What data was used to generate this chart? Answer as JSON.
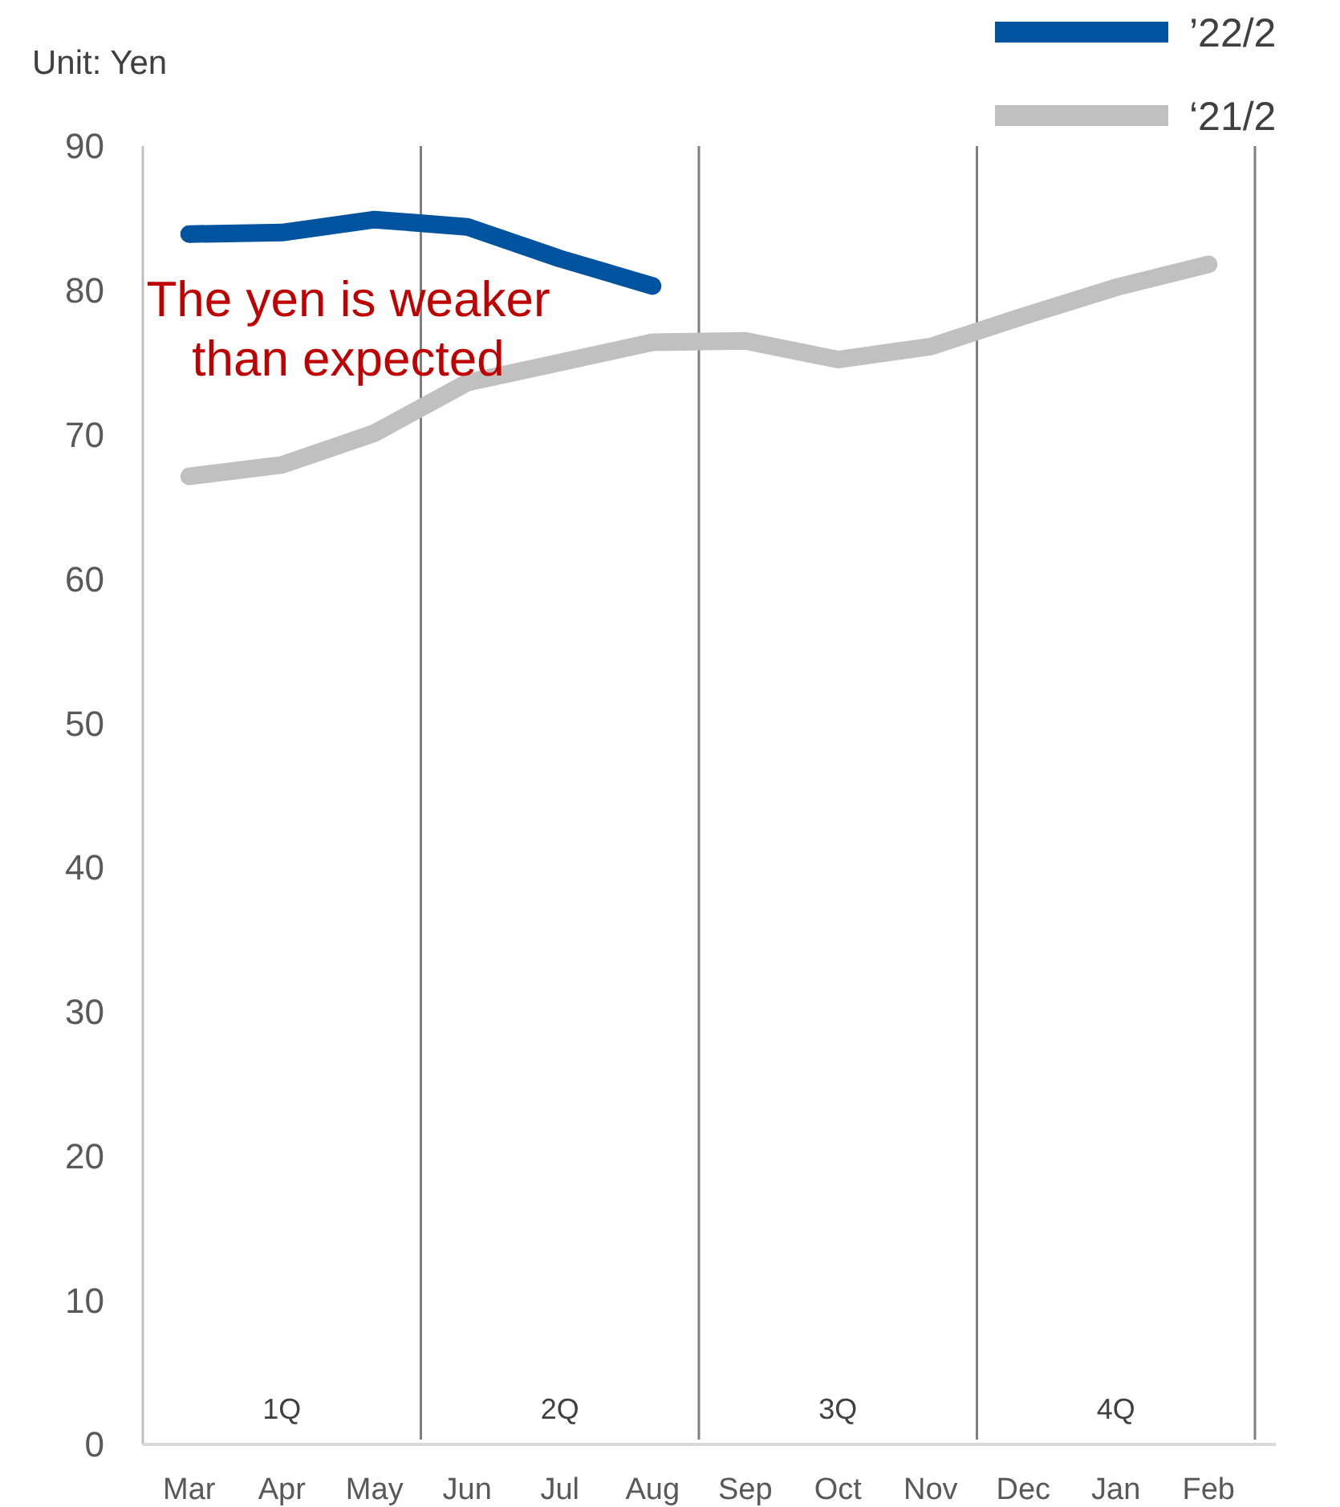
{
  "chart_data": {
    "type": "line",
    "ylabel": "Unit: Yen",
    "categories": [
      "Mar",
      "Apr",
      "May",
      "Jun",
      "Jul",
      "Aug",
      "Sep",
      "Oct",
      "Nov",
      "Dec",
      "Jan",
      "Feb"
    ],
    "series": [
      {
        "name": "’22/2",
        "color": "#00539f",
        "values": [
          83.9,
          84.0,
          84.9,
          84.4,
          82.2,
          80.3,
          null,
          null,
          null,
          null,
          null,
          null
        ]
      },
      {
        "name": "‘21/2",
        "color": "#c0c0c0",
        "values": [
          67.1,
          67.9,
          70.1,
          73.6,
          75.0,
          76.4,
          76.5,
          75.2,
          76.1,
          78.2,
          80.2,
          81.8
        ]
      }
    ],
    "ylim": [
      0,
      90
    ],
    "yticks": [
      0,
      10,
      20,
      30,
      40,
      50,
      60,
      70,
      80,
      90
    ],
    "annotations": [
      "The yen is weaker than expected",
      "1Q",
      "2Q",
      "3Q",
      "4Q"
    ],
    "grid": "x",
    "legend": "top right",
    "marker": "none",
    "line_style": "solid"
  }
}
